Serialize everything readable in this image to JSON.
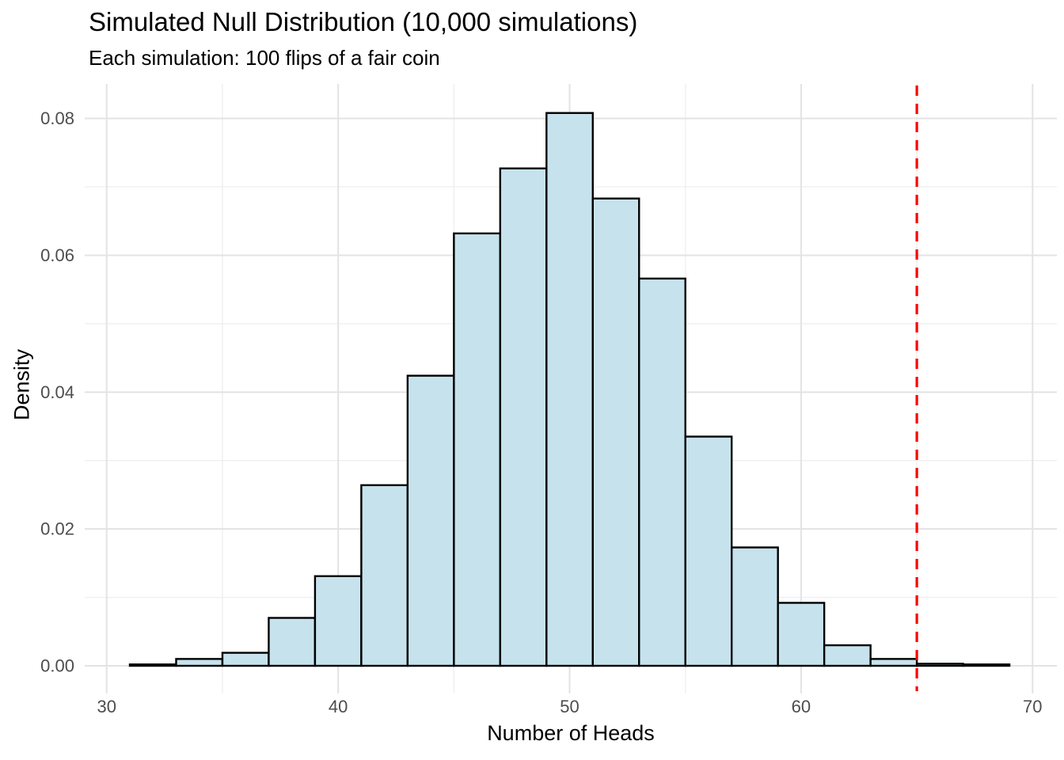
{
  "chart_data": {
    "type": "histogram",
    "title": "Simulated Null Distribution (10,000 simulations)",
    "subtitle": "Each simulation: 100 flips of a fair coin",
    "xlabel": "Number of Heads",
    "ylabel": "Density",
    "bin_width": 2,
    "bin_edges": [
      31,
      33,
      35,
      37,
      39,
      41,
      43,
      45,
      47,
      49,
      51,
      53,
      55,
      57,
      59,
      61,
      63,
      65,
      67,
      69
    ],
    "densities": [
      0.0002,
      0.001,
      0.0019,
      0.007,
      0.0131,
      0.0264,
      0.0424,
      0.0632,
      0.0727,
      0.0808,
      0.0683,
      0.0566,
      0.0335,
      0.0173,
      0.0092,
      0.003,
      0.001,
      0.0003,
      0.0002
    ],
    "xticks": [
      30,
      40,
      50,
      60,
      70
    ],
    "yticks": [
      0.0,
      0.02,
      0.04,
      0.06,
      0.08
    ],
    "x_minor_gridlines": [
      35,
      45,
      55,
      65
    ],
    "y_minor_gridlines": [
      0.01,
      0.03,
      0.05,
      0.07
    ],
    "xlim": [
      29.05,
      71.05
    ],
    "ylim": [
      -0.00405,
      0.08505
    ],
    "grid": true,
    "legend": "none",
    "reference_line": {
      "x": 65,
      "style": "dashed",
      "orientation": "vertical"
    },
    "colors": {
      "bar_fill": "#C6E2ED",
      "bar_stroke": "#000000",
      "reference_line": "#FF0000",
      "grid_major": "#E3E3E3",
      "grid_minor": "#F0F0F0",
      "tick_label": "#4D4D4D",
      "text": "#000000",
      "background": "#FFFFFF"
    }
  }
}
